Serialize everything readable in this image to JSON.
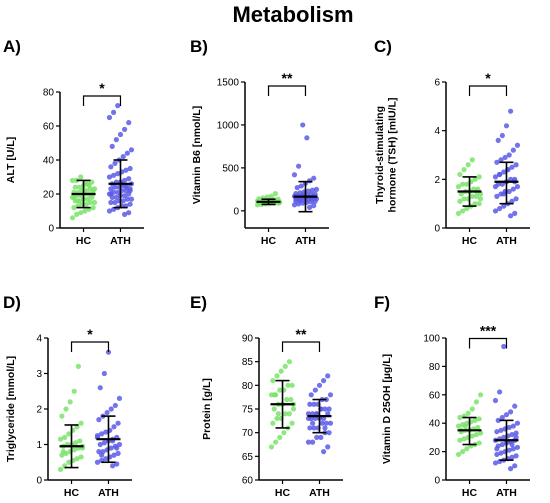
{
  "title": "Metabolism",
  "colors": {
    "HC": "#7be36b",
    "ATH": "#5b5be8",
    "axis": "#000000",
    "bar": "#000000"
  },
  "chart_data": [
    {
      "panel": "A)",
      "type": "scatter",
      "categories": [
        "HC",
        "ATH"
      ],
      "ylabel": "ALT [U/L]",
      "ylim": [
        0,
        80
      ],
      "yticks": [
        0,
        20,
        40,
        60,
        80
      ],
      "significance": "*",
      "series": [
        {
          "name": "HC",
          "mean": 20,
          "sd_low": 12,
          "sd_high": 28,
          "values": [
            6,
            8,
            9,
            10,
            11,
            12,
            12,
            13,
            14,
            14,
            15,
            15,
            16,
            16,
            17,
            17,
            18,
            18,
            19,
            19,
            20,
            20,
            20,
            21,
            21,
            22,
            22,
            23,
            23,
            24,
            24,
            25,
            26,
            27,
            28,
            28,
            30,
            26,
            25,
            22,
            18,
            16
          ]
        },
        {
          "name": "ATH",
          "mean": 26,
          "sd_low": 12,
          "sd_high": 40,
          "values": [
            8,
            9,
            10,
            11,
            12,
            13,
            13,
            14,
            15,
            15,
            16,
            16,
            17,
            17,
            18,
            18,
            19,
            19,
            20,
            20,
            21,
            21,
            22,
            22,
            23,
            23,
            24,
            24,
            25,
            25,
            26,
            26,
            27,
            27,
            28,
            29,
            30,
            31,
            32,
            33,
            34,
            35,
            36,
            38,
            40,
            42,
            44,
            46,
            48,
            52,
            55,
            58,
            62,
            65,
            68,
            72,
            26,
            24,
            22,
            20
          ]
        }
      ]
    },
    {
      "panel": "B)",
      "type": "scatter",
      "categories": [
        "HC",
        "ATH"
      ],
      "ylabel": "Vitamin B6 [nmol/L]",
      "ylim": [
        -200,
        1500
      ],
      "yticks": [
        0,
        500,
        1000,
        1500
      ],
      "significance": "**",
      "series": [
        {
          "name": "HC",
          "mean": 105,
          "sd_low": 75,
          "sd_high": 135,
          "values": [
            70,
            75,
            80,
            85,
            88,
            90,
            92,
            95,
            98,
            100,
            100,
            102,
            105,
            105,
            108,
            110,
            112,
            115,
            118,
            120,
            125,
            130,
            135,
            140,
            150,
            160,
            170,
            200,
            95,
            100
          ]
        },
        {
          "name": "ATH",
          "mean": 165,
          "sd_low": -10,
          "sd_high": 340,
          "values": [
            40,
            60,
            70,
            80,
            90,
            100,
            105,
            110,
            115,
            120,
            125,
            130,
            135,
            140,
            145,
            150,
            155,
            160,
            165,
            170,
            175,
            180,
            185,
            190,
            195,
            200,
            210,
            220,
            230,
            240,
            250,
            270,
            290,
            320,
            350,
            380,
            420,
            520,
            1000,
            850,
            150,
            160,
            140,
            130,
            170
          ]
        }
      ]
    },
    {
      "panel": "C)",
      "type": "scatter",
      "categories": [
        "HC",
        "ATH"
      ],
      "ylabel": "Thyroid-stimulating hormone (TSH) [mIU/L]",
      "ylim": [
        0,
        6
      ],
      "yticks": [
        0,
        2,
        4,
        6
      ],
      "significance": "*",
      "series": [
        {
          "name": "HC",
          "mean": 1.5,
          "sd_low": 0.9,
          "sd_high": 2.1,
          "values": [
            0.6,
            0.7,
            0.8,
            0.9,
            1.0,
            1.0,
            1.1,
            1.2,
            1.2,
            1.3,
            1.3,
            1.4,
            1.4,
            1.5,
            1.5,
            1.6,
            1.6,
            1.7,
            1.8,
            1.8,
            1.9,
            2.0,
            2.1,
            2.2,
            2.4,
            2.6,
            2.8,
            1.5,
            1.2
          ]
        },
        {
          "name": "ATH",
          "mean": 1.9,
          "sd_low": 1.0,
          "sd_high": 2.7,
          "values": [
            0.5,
            0.6,
            0.7,
            0.8,
            0.9,
            1.0,
            1.1,
            1.2,
            1.3,
            1.4,
            1.5,
            1.5,
            1.6,
            1.7,
            1.8,
            1.8,
            1.9,
            2.0,
            2.0,
            2.1,
            2.2,
            2.3,
            2.4,
            2.5,
            2.6,
            2.7,
            2.8,
            2.9,
            3.0,
            3.2,
            3.4,
            3.6,
            3.8,
            4.2,
            4.8,
            1.9,
            1.7,
            2.2,
            1.4,
            2.4
          ]
        }
      ]
    },
    {
      "panel": "D)",
      "type": "scatter",
      "categories": [
        "HC",
        "ATH"
      ],
      "ylabel": "Triglyceride [mmol/L]",
      "ylim": [
        0,
        4
      ],
      "yticks": [
        0,
        1,
        2,
        3,
        4
      ],
      "significance": "*",
      "series": [
        {
          "name": "HC",
          "mean": 0.95,
          "sd_low": 0.35,
          "sd_high": 1.55,
          "values": [
            0.3,
            0.4,
            0.5,
            0.55,
            0.6,
            0.65,
            0.7,
            0.75,
            0.8,
            0.85,
            0.9,
            0.9,
            0.95,
            1.0,
            1.0,
            1.05,
            1.1,
            1.15,
            1.2,
            1.3,
            1.4,
            1.5,
            1.6,
            1.8,
            2.0,
            2.2,
            2.5,
            3.2,
            0.95,
            0.8
          ]
        },
        {
          "name": "ATH",
          "mean": 1.15,
          "sd_low": 0.5,
          "sd_high": 1.8,
          "values": [
            0.4,
            0.45,
            0.5,
            0.55,
            0.6,
            0.65,
            0.7,
            0.75,
            0.8,
            0.8,
            0.85,
            0.9,
            0.95,
            1.0,
            1.0,
            1.05,
            1.1,
            1.15,
            1.2,
            1.25,
            1.3,
            1.35,
            1.4,
            1.5,
            1.6,
            1.7,
            1.8,
            1.9,
            2.0,
            2.1,
            2.3,
            2.6,
            3.0,
            3.6,
            1.1,
            0.9,
            1.2,
            0.7
          ]
        }
      ]
    },
    {
      "panel": "E)",
      "type": "scatter",
      "categories": [
        "HC",
        "ATH"
      ],
      "ylabel": "Protein [g/L]",
      "ylim": [
        60,
        90
      ],
      "yticks": [
        60,
        65,
        70,
        75,
        80,
        85,
        90
      ],
      "significance": "**",
      "series": [
        {
          "name": "HC",
          "mean": 76,
          "sd_low": 71,
          "sd_high": 81,
          "values": [
            67,
            68,
            69,
            70,
            71,
            72,
            72,
            73,
            73,
            74,
            74,
            75,
            75,
            76,
            76,
            77,
            77,
            78,
            78,
            79,
            79,
            80,
            80,
            81,
            82,
            83,
            84,
            85,
            76,
            78,
            74
          ]
        },
        {
          "name": "ATH",
          "mean": 73.5,
          "sd_low": 70,
          "sd_high": 77,
          "values": [
            66,
            67,
            68,
            68,
            69,
            69,
            70,
            70,
            71,
            71,
            71,
            72,
            72,
            72,
            73,
            73,
            73,
            73,
            74,
            74,
            74,
            74,
            75,
            75,
            75,
            76,
            76,
            76,
            77,
            77,
            78,
            78,
            79,
            80,
            81,
            82,
            73,
            72,
            74,
            75,
            71
          ]
        }
      ]
    },
    {
      "panel": "F)",
      "type": "scatter",
      "categories": [
        "HC",
        "ATH"
      ],
      "ylabel": "Vitamin D 25OH [µg/L]",
      "ylim": [
        0,
        100
      ],
      "yticks": [
        0,
        20,
        40,
        60,
        80,
        100
      ],
      "significance": "***",
      "series": [
        {
          "name": "HC",
          "mean": 35,
          "sd_low": 25,
          "sd_high": 44,
          "values": [
            18,
            20,
            22,
            24,
            25,
            26,
            28,
            29,
            30,
            31,
            32,
            33,
            34,
            35,
            35,
            36,
            37,
            38,
            39,
            40,
            41,
            42,
            43,
            44,
            45,
            47,
            50,
            55,
            60,
            35,
            38
          ]
        },
        {
          "name": "ATH",
          "mean": 28,
          "sd_low": 14,
          "sd_high": 42,
          "values": [
            8,
            10,
            12,
            13,
            14,
            15,
            16,
            17,
            18,
            19,
            20,
            21,
            22,
            23,
            24,
            25,
            26,
            27,
            28,
            28,
            29,
            30,
            31,
            32,
            33,
            34,
            35,
            36,
            37,
            38,
            40,
            42,
            44,
            46,
            48,
            52,
            56,
            62,
            94,
            27,
            25,
            30,
            22
          ]
        }
      ]
    }
  ]
}
